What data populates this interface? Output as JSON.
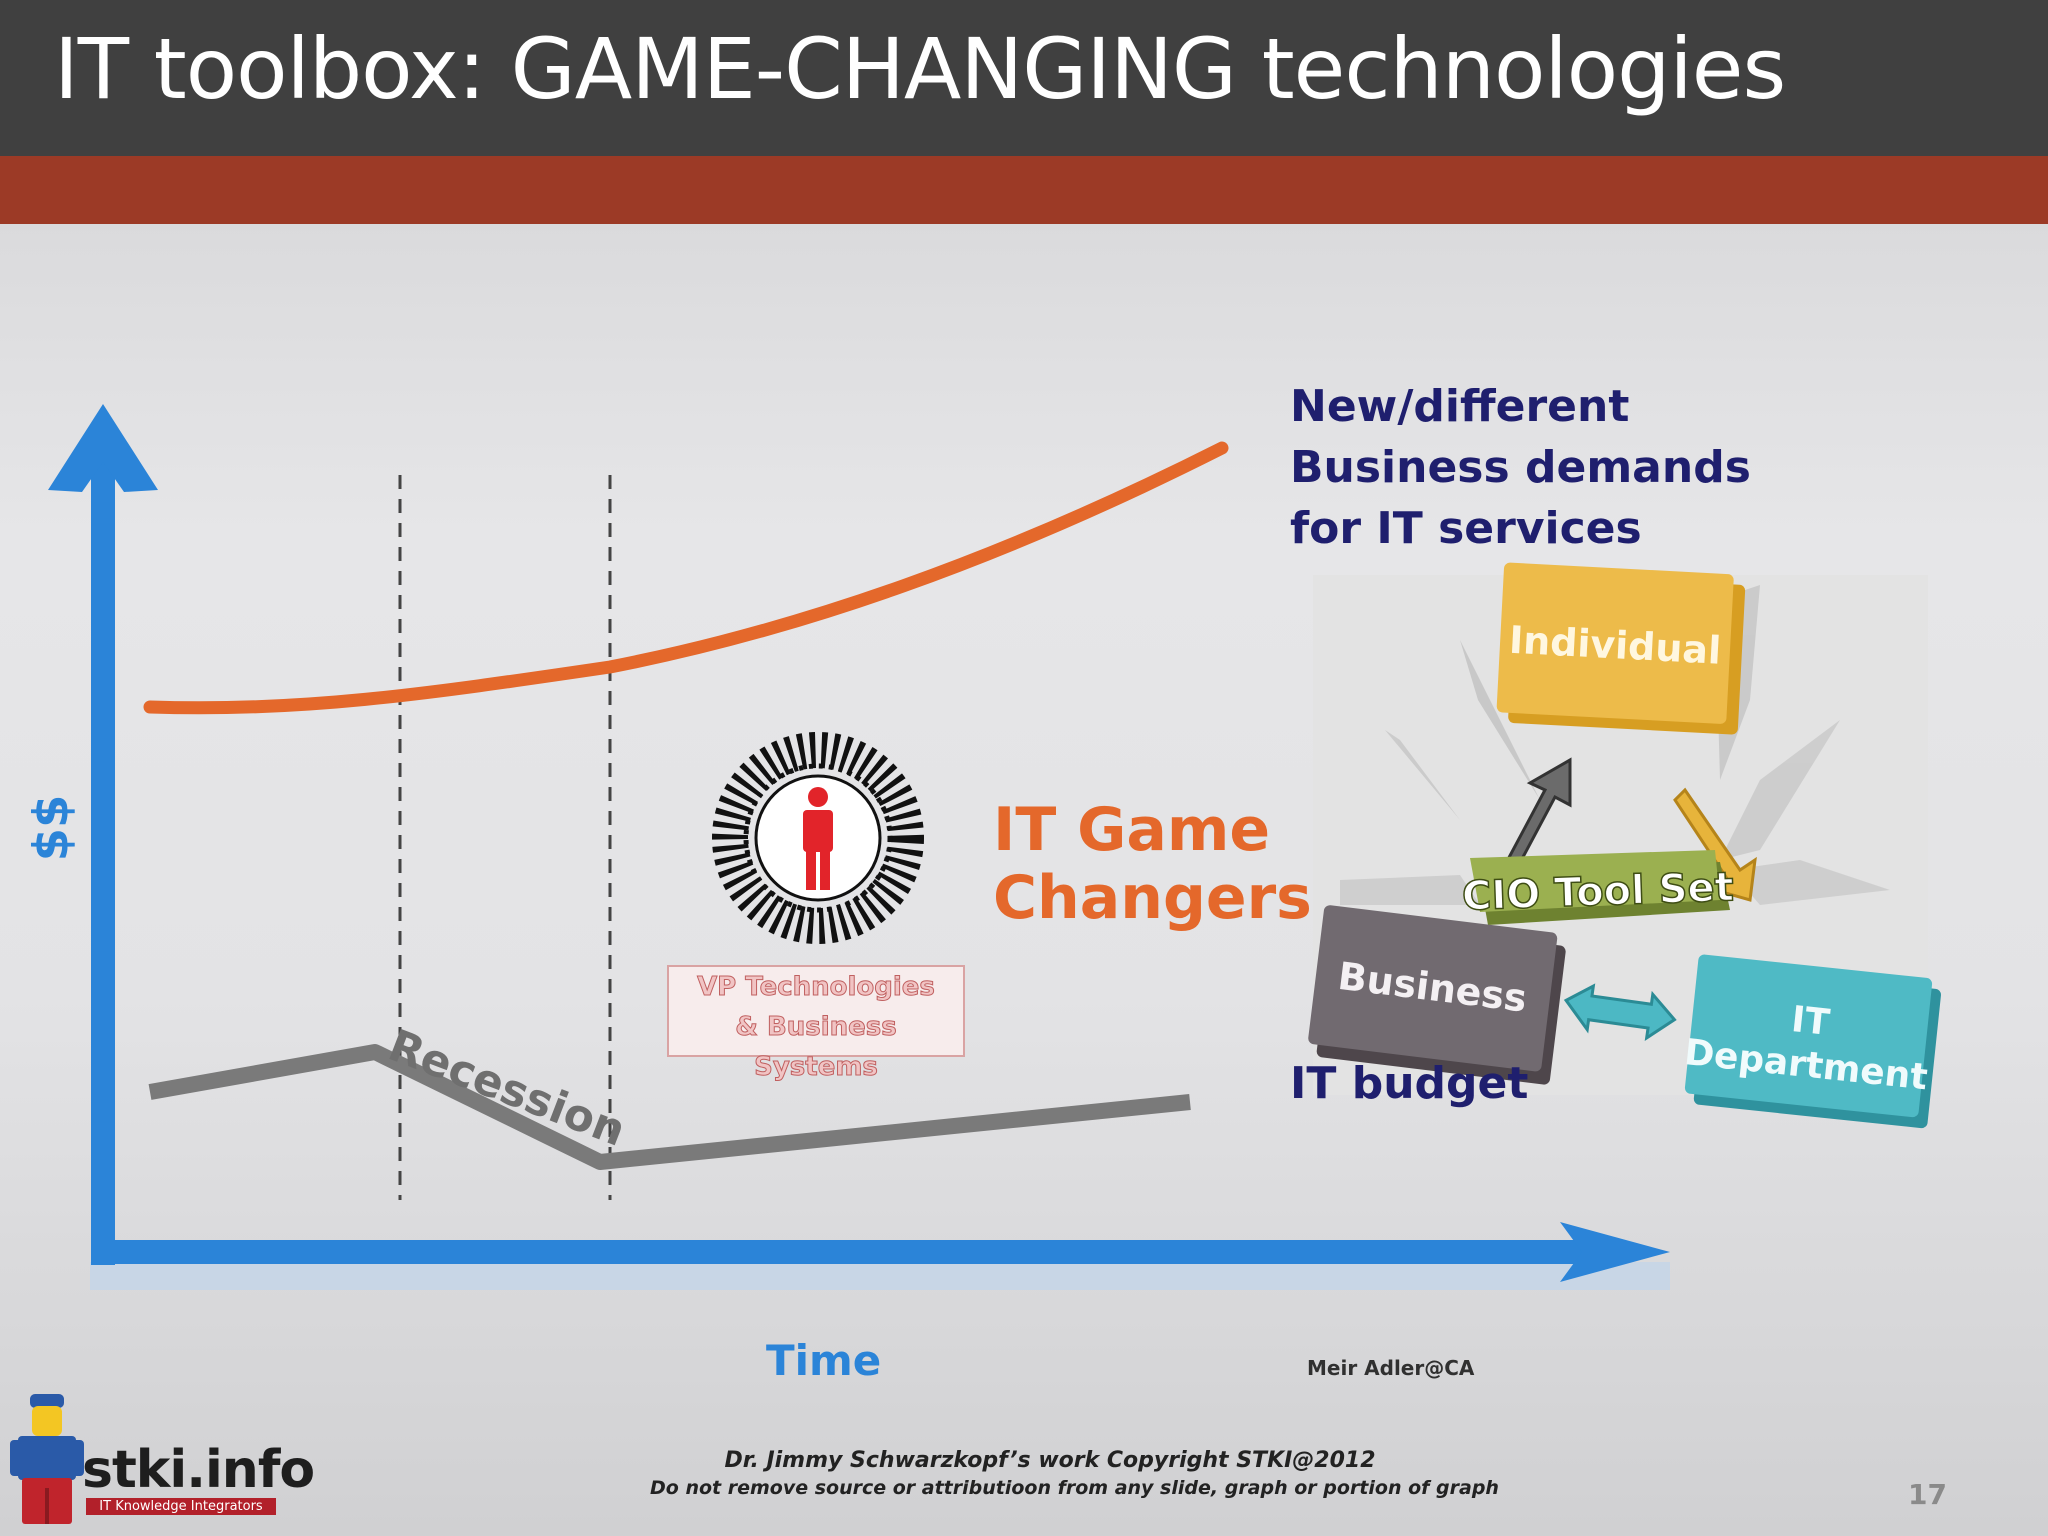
{
  "slide": {
    "title": "IT toolbox: GAME-CHANGING technologies",
    "page_number": "17"
  },
  "chart": {
    "y_axis_label": "$$",
    "x_axis_label": "Time",
    "demand_label_lines": [
      "New/different",
      "Business demands",
      "for IT services"
    ],
    "budget_label": "IT budget",
    "recession_label": "Recession",
    "game_changers_lines": [
      "IT Game",
      "Changers"
    ],
    "vp_box_lines": [
      "VP Technologies",
      "& Business Systems"
    ]
  },
  "cio_graphic": {
    "individual": "Individual",
    "tool_set": "CIO Tool Set",
    "business": "Business",
    "it_department_lines": [
      "IT",
      "Department"
    ]
  },
  "credit": "Meir Adler@CA",
  "footer": {
    "line1": "Dr. Jimmy Schwarzkopf’s work   Copyright STKI@2012",
    "line2": "Do not remove source or attributioon from any slide, graph or portion of graph"
  },
  "logo": {
    "name": "stki.info",
    "tagline": "IT Knowledge Integrators"
  },
  "colors": {
    "title_bar": "#404040",
    "accent_band": "#9c3a26",
    "axis": "#2b84d8",
    "demand_curve": "#e4682b",
    "budget_curve": "#7a7a7a",
    "label_navy": "#1f1f6e"
  }
}
